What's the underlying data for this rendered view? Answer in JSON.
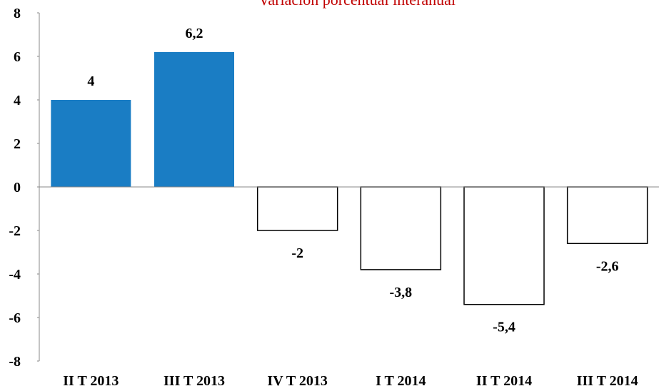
{
  "chart_data": {
    "type": "bar",
    "title": "Variación porcentual interanual",
    "categories": [
      "II T 2013",
      "III T 2013",
      "IV T 2013",
      "I T 2014",
      "II T 2014",
      "III T 2014"
    ],
    "values": [
      4,
      6.2,
      -2,
      -3.8,
      -5.4,
      -2.6
    ],
    "value_labels": [
      "4",
      "6,2",
      "-2",
      "-3,8",
      "-5,4",
      "-2,6"
    ],
    "colors": [
      "#1a7dc4",
      "#1a7dc4",
      "#ffffff",
      "#ffffff",
      "#ffffff",
      "#ffffff"
    ],
    "ylim": [
      -8,
      8
    ],
    "yticks": [
      -8,
      -6,
      -4,
      -2,
      0,
      2,
      4,
      6,
      8
    ],
    "grid": false
  }
}
